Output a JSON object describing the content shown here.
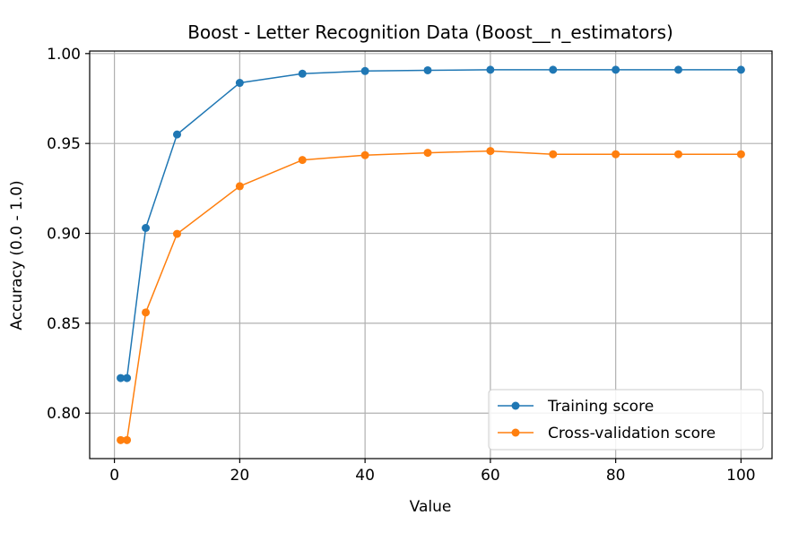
{
  "chart_data": {
    "type": "line",
    "title": "Boost - Letter Recognition Data (Boost__n_estimators)",
    "xlabel": "Value",
    "ylabel": "Accuracy (0.0 - 1.0)",
    "xlim": [
      -3.95,
      104.95
    ],
    "ylim": [
      0.7747,
      1.0014
    ],
    "x_ticks": [
      0,
      20,
      40,
      60,
      80,
      100
    ],
    "y_ticks": [
      0.8,
      0.85,
      0.9,
      0.95,
      1.0
    ],
    "x_tick_labels": [
      "0",
      "20",
      "40",
      "60",
      "80",
      "100"
    ],
    "y_tick_labels": [
      "0.80",
      "0.85",
      "0.90",
      "0.95",
      "1.00"
    ],
    "grid": true,
    "legend_position": "lower-right",
    "x": [
      1,
      2,
      5,
      10,
      20,
      30,
      40,
      50,
      60,
      70,
      80,
      90,
      100
    ],
    "series": [
      {
        "name": "Training score",
        "color": "#1f77b4",
        "values": [
          0.8195,
          0.8195,
          0.903,
          0.955,
          0.9837,
          0.9888,
          0.9903,
          0.9907,
          0.991,
          0.991,
          0.991,
          0.991,
          0.991
        ]
      },
      {
        "name": "Cross-validation score",
        "color": "#ff7f0e",
        "values": [
          0.785,
          0.785,
          0.856,
          0.8997,
          0.9262,
          0.9408,
          0.9435,
          0.9448,
          0.9458,
          0.944,
          0.944,
          0.944,
          0.944
        ]
      }
    ]
  }
}
